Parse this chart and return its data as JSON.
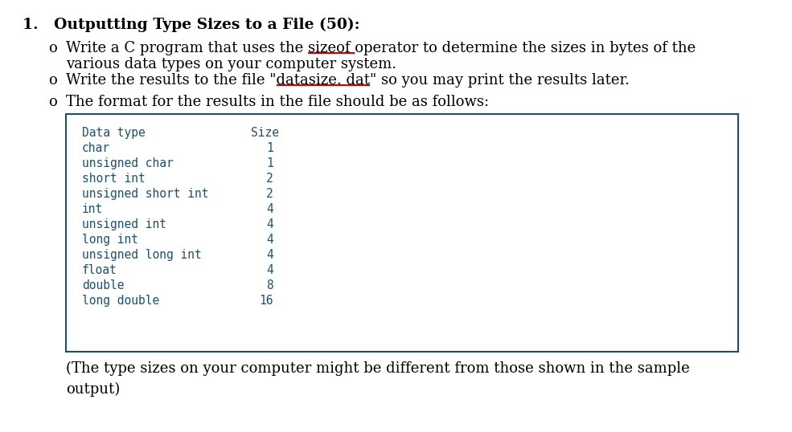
{
  "bg_color": "#ffffff",
  "title_text": "1.   Outputting Type Sizes to a File (50):",
  "title_fontsize": 13.5,
  "bullet_fontsize": 13.0,
  "bullet_o_char": "o",
  "mono_color": "#1a5276",
  "mono_fontsize": 10.5,
  "box_edge_color": "#1a4f72",
  "box_face_color": "#ffffff",
  "underline_color": "#cc0000",
  "table_header": [
    "Data type",
    "Size"
  ],
  "table_rows": [
    [
      "char",
      "1"
    ],
    [
      "unsigned char",
      "1"
    ],
    [
      "short int",
      "2"
    ],
    [
      "unsigned short int",
      "2"
    ],
    [
      "int",
      "4"
    ],
    [
      "unsigned int",
      "4"
    ],
    [
      "long int",
      "4"
    ],
    [
      "unsigned long int",
      "4"
    ],
    [
      "float",
      "4"
    ],
    [
      "double",
      "8"
    ],
    [
      "long double",
      "16"
    ]
  ],
  "footer_text": "(The type sizes on your computer might be different from those shown in the sample\noutput)"
}
